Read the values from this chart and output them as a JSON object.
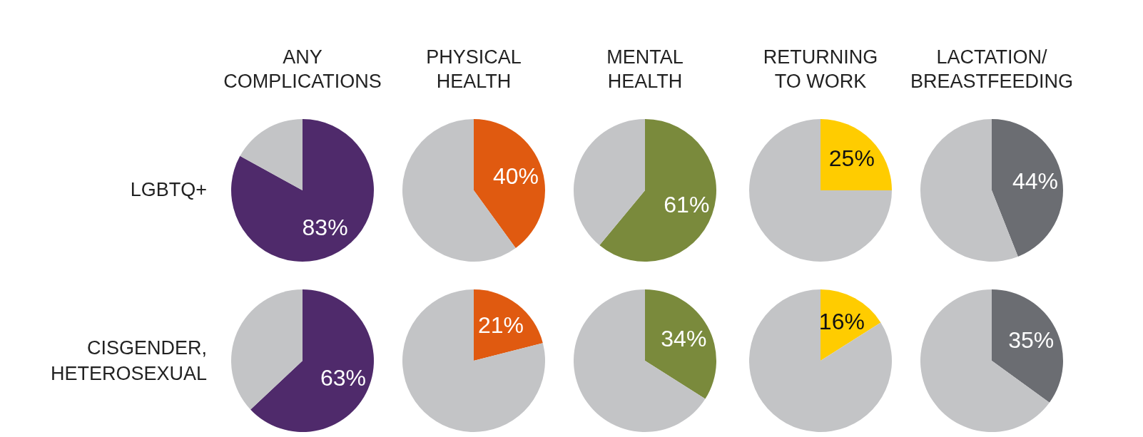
{
  "chart_data": [
    {
      "type": "pie",
      "title": "ANY\nCOMPLICATIONS",
      "ylabel": "LGBTQ+",
      "categories": [
        null,
        null
      ],
      "values": [
        83,
        17
      ],
      "colors": [
        "#4f2a6b",
        "#c3c4c6"
      ],
      "value_labels": [
        "83%",
        null
      ]
    },
    {
      "type": "pie",
      "title": "PHYSICAL\nHEALTH",
      "categories": [
        null,
        null
      ],
      "values": [
        40,
        60
      ],
      "colors": [
        "#e05a10",
        "#c3c4c6"
      ],
      "value_labels": [
        "40%",
        null
      ]
    },
    {
      "type": "pie",
      "title": "MENTAL\nHEALTH",
      "categories": [
        null,
        null
      ],
      "values": [
        61,
        39
      ],
      "colors": [
        "#7a8a3c",
        "#c3c4c6"
      ],
      "value_labels": [
        "61%",
        null
      ]
    },
    {
      "type": "pie",
      "title": "RETURNING\nTO WORK",
      "categories": [
        null,
        null
      ],
      "values": [
        25,
        75
      ],
      "colors": [
        "#ffcc00",
        "#c3c4c6"
      ],
      "value_labels": [
        "25%",
        null
      ]
    },
    {
      "type": "pie",
      "title": "LACTATION/\nBREASTFEEDING",
      "categories": [
        null,
        null
      ],
      "values": [
        44,
        56
      ],
      "colors": [
        "#6b6d72",
        "#c3c4c6"
      ],
      "value_labels": [
        "44%",
        null
      ]
    },
    {
      "type": "pie",
      "ylabel": "CISGENDER,\nHETEROSEXUAL",
      "categories": [
        null,
        null
      ],
      "values": [
        63,
        37
      ],
      "colors": [
        "#4f2a6b",
        "#c3c4c6"
      ],
      "value_labels": [
        "63%",
        null
      ]
    },
    {
      "type": "pie",
      "categories": [
        null,
        null
      ],
      "values": [
        21,
        79
      ],
      "colors": [
        "#e05a10",
        "#c3c4c6"
      ],
      "value_labels": [
        "21%",
        null
      ]
    },
    {
      "type": "pie",
      "categories": [
        null,
        null
      ],
      "values": [
        34,
        66
      ],
      "colors": [
        "#7a8a3c",
        "#c3c4c6"
      ],
      "value_labels": [
        "34%",
        null
      ]
    },
    {
      "type": "pie",
      "categories": [
        null,
        null
      ],
      "values": [
        16,
        84
      ],
      "colors": [
        "#ffcc00",
        "#c3c4c6"
      ],
      "value_labels": [
        "16%",
        null
      ]
    },
    {
      "type": "pie",
      "categories": [
        null,
        null
      ],
      "values": [
        35,
        65
      ],
      "colors": [
        "#6b6d72",
        "#c3c4c6"
      ],
      "value_labels": [
        "35%",
        null
      ]
    }
  ]
}
